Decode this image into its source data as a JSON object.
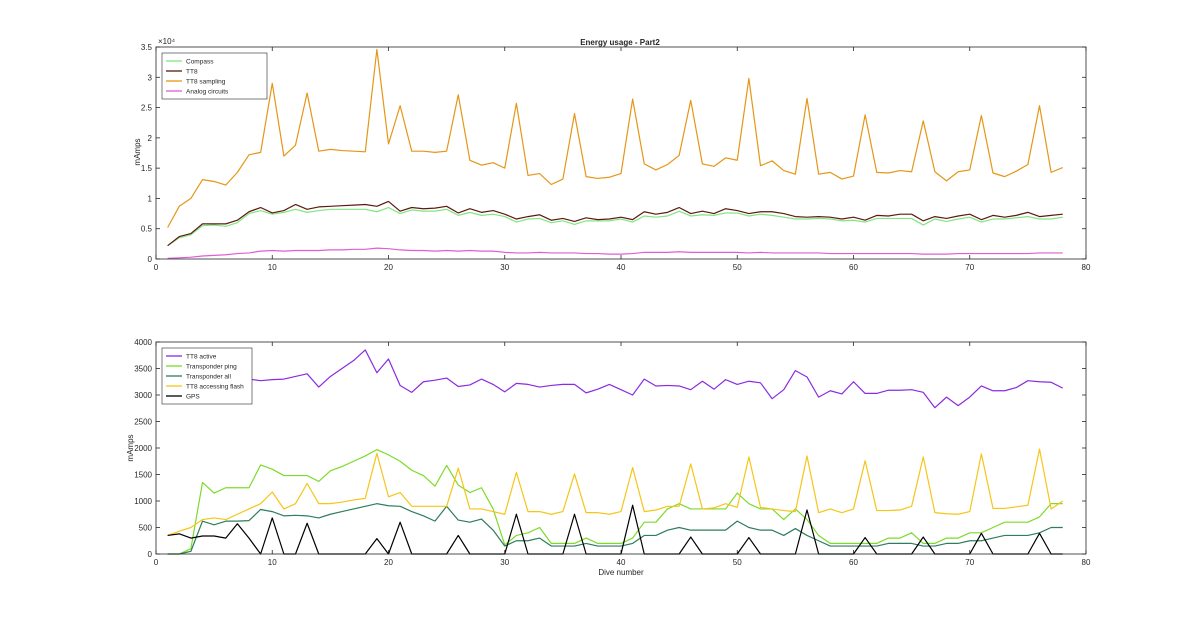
{
  "figure": {
    "background": "#ffffff"
  },
  "chart_data": [
    {
      "type": "line",
      "title": "Energy usage - Part2",
      "xlabel": "",
      "ylabel": "mAmps",
      "y_exponent_label": "×10⁴",
      "xlim": [
        0,
        80
      ],
      "ylim": [
        0,
        35000
      ],
      "xticks": [
        0,
        10,
        20,
        30,
        40,
        50,
        60,
        70,
        80
      ],
      "yticks": [
        0,
        5000,
        10000,
        15000,
        20000,
        25000,
        30000,
        35000
      ],
      "ytick_labels": [
        "0",
        "0.5",
        "1",
        "1.5",
        "2",
        "2.5",
        "3",
        "3.5"
      ],
      "grid": false,
      "legend_position": "top-left",
      "x": [
        1,
        2,
        3,
        4,
        5,
        6,
        7,
        8,
        9,
        10,
        11,
        12,
        13,
        14,
        15,
        16,
        17,
        18,
        19,
        20,
        21,
        22,
        23,
        24,
        25,
        26,
        27,
        28,
        29,
        30,
        31,
        32,
        33,
        34,
        35,
        36,
        37,
        38,
        39,
        40,
        41,
        42,
        43,
        44,
        45,
        46,
        47,
        48,
        49,
        50,
        51,
        52,
        53,
        54,
        55,
        56,
        57,
        58,
        59,
        60,
        61,
        62,
        63,
        64,
        65,
        66,
        67,
        68,
        69,
        70,
        71,
        72,
        73,
        74,
        75,
        76,
        77,
        78
      ],
      "series": [
        {
          "name": "Compass",
          "color": "#80e680",
          "values": [
            2200,
            3500,
            4000,
            5500,
            5600,
            5400,
            6000,
            7500,
            8000,
            7400,
            7700,
            8200,
            7700,
            8000,
            8200,
            8200,
            8200,
            8200,
            7800,
            8500,
            7500,
            8100,
            7900,
            7900,
            8200,
            7200,
            7700,
            7200,
            7400,
            7000,
            6100,
            6600,
            6700,
            6000,
            6300,
            5700,
            6300,
            6300,
            6300,
            6600,
            6100,
            7100,
            6900,
            7100,
            7900,
            7100,
            7300,
            7200,
            7600,
            7600,
            7100,
            7400,
            7200,
            6900,
            6600,
            6600,
            6700,
            6600,
            6300,
            6400,
            6100,
            6700,
            6700,
            6700,
            6700,
            5600,
            6600,
            6200,
            6600,
            6900,
            6100,
            6600,
            6600,
            6800,
            7000,
            6600,
            6600,
            6900
          ]
        },
        {
          "name": "TT8",
          "color": "#5c1a0f",
          "values": [
            2200,
            3700,
            4200,
            5800,
            5800,
            5800,
            6400,
            7800,
            8500,
            7600,
            8000,
            9000,
            8200,
            8600,
            8700,
            8800,
            8900,
            9000,
            8700,
            9500,
            7900,
            8500,
            8300,
            8400,
            8700,
            7600,
            8300,
            7700,
            8000,
            7400,
            6600,
            7000,
            7300,
            6400,
            6700,
            6200,
            6800,
            6500,
            6600,
            6900,
            6500,
            7800,
            7400,
            7700,
            8500,
            7500,
            7900,
            7500,
            8300,
            8000,
            7500,
            7800,
            7800,
            7500,
            7000,
            6900,
            7000,
            6900,
            6600,
            6900,
            6400,
            7200,
            7100,
            7400,
            7400,
            6300,
            7000,
            6700,
            7100,
            7400,
            6500,
            7200,
            6900,
            7200,
            7700,
            7000,
            7200,
            7400
          ]
        },
        {
          "name": "TT8 sampling",
          "color": "#e59617",
          "values": [
            5200,
            8700,
            10000,
            13100,
            12800,
            12200,
            14300,
            17200,
            17600,
            29000,
            17000,
            18800,
            27400,
            17800,
            18100,
            17900,
            17800,
            17700,
            34600,
            19000,
            25300,
            17800,
            17800,
            17600,
            17800,
            27100,
            16300,
            15500,
            15900,
            15000,
            25700,
            13800,
            14100,
            12300,
            13200,
            24000,
            13600,
            13300,
            13500,
            14100,
            26400,
            15700,
            14700,
            15600,
            17100,
            26200,
            15700,
            15300,
            16700,
            16300,
            29800,
            15400,
            16200,
            14600,
            14000,
            26500,
            14000,
            14300,
            13200,
            13700,
            23800,
            14300,
            14200,
            14600,
            14400,
            22800,
            14400,
            12900,
            14400,
            14700,
            23700,
            14200,
            13600,
            14500,
            15600,
            25300,
            14300,
            15100
          ]
        },
        {
          "name": "Analog circuits",
          "color": "#e05ed2",
          "values": [
            100,
            200,
            300,
            500,
            600,
            700,
            900,
            1000,
            1300,
            1400,
            1300,
            1400,
            1400,
            1400,
            1500,
            1500,
            1600,
            1600,
            1800,
            1700,
            1500,
            1400,
            1400,
            1300,
            1400,
            1300,
            1400,
            1300,
            1300,
            1100,
            1000,
            1000,
            1100,
            1000,
            1000,
            1000,
            900,
            900,
            800,
            800,
            900,
            1100,
            1100,
            1100,
            1200,
            1100,
            1100,
            1100,
            1100,
            1100,
            1000,
            1100,
            1000,
            1000,
            1000,
            1000,
            1000,
            900,
            900,
            900,
            900,
            900,
            900,
            900,
            900,
            800,
            800,
            800,
            900,
            900,
            900,
            900,
            900,
            900,
            900,
            1000,
            1000,
            1000
          ]
        }
      ]
    },
    {
      "type": "line",
      "title": "",
      "xlabel": "Dive number",
      "ylabel": "mAmps",
      "xlim": [
        0,
        80
      ],
      "ylim": [
        0,
        4000
      ],
      "xticks": [
        0,
        10,
        20,
        30,
        40,
        50,
        60,
        70,
        80
      ],
      "yticks": [
        0,
        500,
        1000,
        1500,
        2000,
        2500,
        3000,
        3500,
        4000
      ],
      "grid": false,
      "legend_position": "top-left",
      "x": [
        1,
        2,
        3,
        4,
        5,
        6,
        7,
        8,
        9,
        10,
        11,
        12,
        13,
        14,
        15,
        16,
        17,
        18,
        19,
        20,
        21,
        22,
        23,
        24,
        25,
        26,
        27,
        28,
        29,
        30,
        31,
        32,
        33,
        34,
        35,
        36,
        37,
        38,
        39,
        40,
        41,
        42,
        43,
        44,
        45,
        46,
        47,
        48,
        49,
        50,
        51,
        52,
        53,
        54,
        55,
        56,
        57,
        58,
        59,
        60,
        61,
        62,
        63,
        64,
        65,
        66,
        67,
        68,
        69,
        70,
        71,
        72,
        73,
        74,
        75,
        76,
        77,
        78
      ],
      "series": [
        {
          "name": "TT8 active",
          "color": "#8a2be2",
          "values": [
            2900,
            3050,
            3150,
            3200,
            3250,
            3270,
            3290,
            3300,
            3270,
            3290,
            3300,
            3350,
            3400,
            3150,
            3350,
            3500,
            3650,
            3850,
            3420,
            3680,
            3180,
            3050,
            3250,
            3280,
            3320,
            3160,
            3190,
            3300,
            3200,
            3060,
            3220,
            3200,
            3150,
            3180,
            3200,
            3200,
            3040,
            3110,
            3200,
            3100,
            3000,
            3300,
            3170,
            3180,
            3170,
            3100,
            3260,
            3110,
            3290,
            3200,
            3260,
            3230,
            2930,
            3100,
            3460,
            3340,
            2960,
            3080,
            3020,
            3250,
            3030,
            3030,
            3090,
            3090,
            3100,
            3050,
            2760,
            2960,
            2800,
            2960,
            3170,
            3080,
            3080,
            3140,
            3270,
            3250,
            3240,
            3130
          ]
        },
        {
          "name": "Transponder ping",
          "color": "#7cdb2a",
          "values": [
            0,
            0,
            100,
            1350,
            1150,
            1250,
            1250,
            1250,
            1680,
            1600,
            1480,
            1480,
            1480,
            1370,
            1570,
            1650,
            1750,
            1850,
            1970,
            1870,
            1750,
            1580,
            1480,
            1280,
            1670,
            1300,
            1160,
            1250,
            850,
            170,
            350,
            400,
            500,
            200,
            200,
            200,
            300,
            200,
            200,
            200,
            300,
            600,
            600,
            850,
            950,
            850,
            850,
            850,
            850,
            1150,
            950,
            850,
            850,
            650,
            850,
            650,
            350,
            200,
            200,
            200,
            200,
            200,
            300,
            300,
            400,
            200,
            200,
            300,
            300,
            400,
            400,
            500,
            600,
            600,
            600,
            700,
            950,
            950
          ]
        },
        {
          "name": "Transponder all",
          "color": "#2e7d5b",
          "values": [
            0,
            0,
            50,
            620,
            550,
            620,
            620,
            630,
            840,
            800,
            720,
            730,
            720,
            680,
            750,
            800,
            850,
            900,
            950,
            910,
            900,
            800,
            720,
            620,
            900,
            640,
            600,
            660,
            450,
            150,
            250,
            250,
            300,
            150,
            150,
            150,
            200,
            150,
            150,
            150,
            200,
            350,
            350,
            450,
            500,
            450,
            450,
            450,
            450,
            620,
            500,
            450,
            450,
            350,
            480,
            350,
            250,
            150,
            150,
            150,
            150,
            150,
            200,
            200,
            200,
            150,
            150,
            200,
            200,
            250,
            250,
            300,
            350,
            350,
            350,
            400,
            500,
            500
          ]
        },
        {
          "name": "TT8 accessing flash",
          "color": "#f5c518",
          "values": [
            350,
            430,
            500,
            650,
            680,
            650,
            750,
            850,
            950,
            1170,
            850,
            950,
            1330,
            950,
            950,
            980,
            1020,
            1050,
            1900,
            1080,
            1160,
            900,
            900,
            900,
            900,
            1620,
            850,
            850,
            800,
            750,
            1540,
            800,
            800,
            750,
            800,
            1510,
            780,
            780,
            750,
            800,
            1630,
            800,
            830,
            900,
            900,
            1700,
            850,
            870,
            950,
            880,
            1830,
            880,
            850,
            820,
            800,
            1850,
            780,
            850,
            780,
            850,
            1760,
            820,
            820,
            830,
            900,
            1830,
            780,
            760,
            750,
            800,
            1890,
            860,
            860,
            890,
            920,
            1980,
            850,
            1000
          ]
        },
        {
          "name": "GPS",
          "color": "#000000",
          "values": [
            350,
            380,
            300,
            340,
            340,
            300,
            570,
            300,
            0,
            680,
            0,
            0,
            580,
            0,
            0,
            0,
            0,
            0,
            290,
            0,
            600,
            0,
            0,
            0,
            0,
            350,
            0,
            0,
            0,
            0,
            750,
            0,
            0,
            0,
            0,
            750,
            0,
            0,
            0,
            0,
            920,
            0,
            0,
            0,
            0,
            320,
            0,
            0,
            0,
            0,
            310,
            0,
            0,
            0,
            0,
            830,
            0,
            0,
            0,
            0,
            310,
            0,
            0,
            0,
            0,
            320,
            0,
            0,
            0,
            0,
            390,
            0,
            0,
            0,
            0,
            390,
            0,
            0
          ]
        }
      ]
    }
  ]
}
